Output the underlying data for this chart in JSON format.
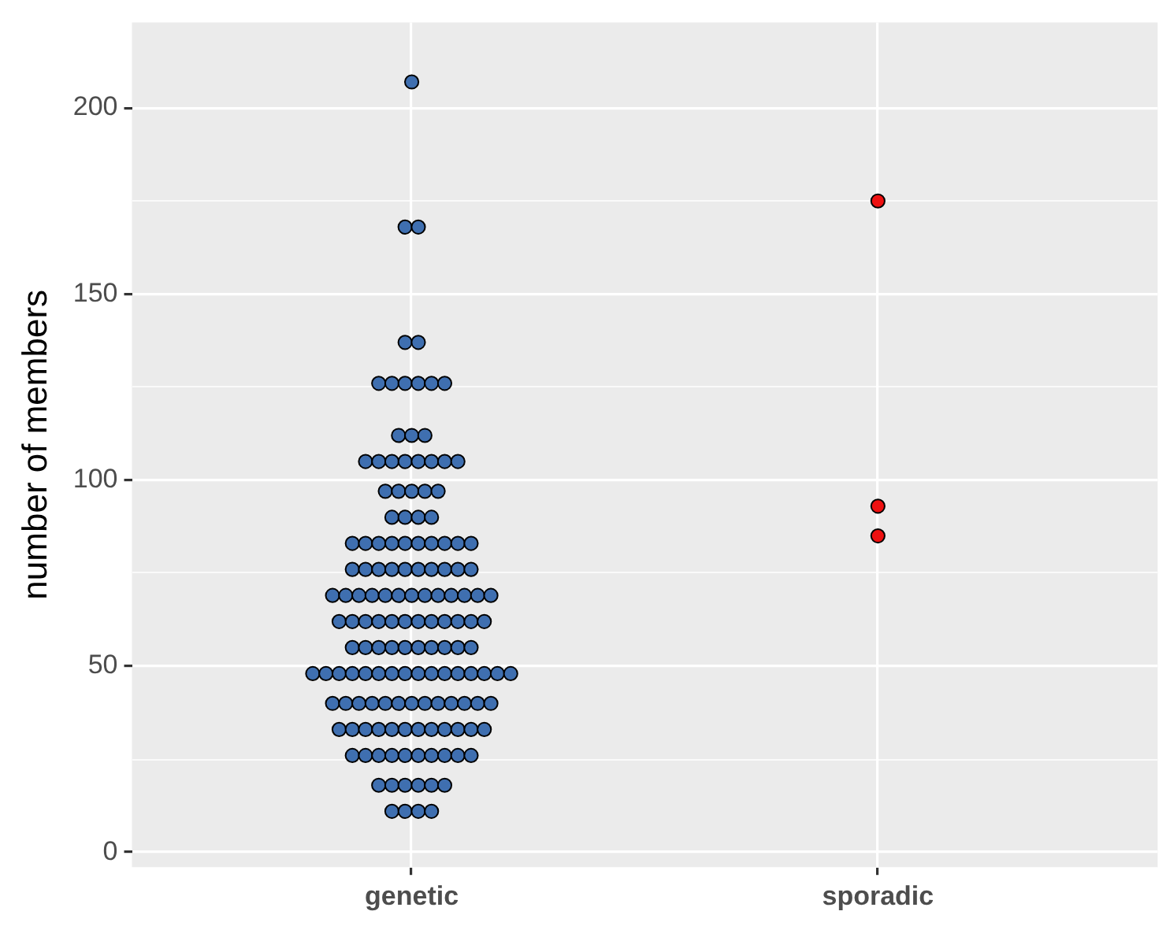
{
  "chart_data": {
    "type": "scatter",
    "ylabel": "number of members",
    "categories": [
      "genetic",
      "sporadic"
    ],
    "ylim": [
      -4,
      223
    ],
    "yticks": [
      0,
      {
        "value": 25,
        "label": null
      },
      50,
      {
        "value": 75,
        "label": null
      },
      100,
      {
        "value": 125,
        "label": null
      },
      150,
      {
        "value": 175,
        "label": null
      },
      200
    ],
    "grid": true,
    "legend": false,
    "marker": "circle",
    "series": [
      {
        "color": "#3f6fb0",
        "x": [
          "genetic",
          "genetic",
          "genetic",
          "genetic",
          "genetic",
          "genetic",
          "genetic",
          "genetic",
          "genetic",
          "genetic",
          "genetic",
          "genetic",
          "genetic",
          "genetic",
          "genetic",
          "genetic",
          "genetic",
          "genetic",
          "genetic",
          "genetic",
          "genetic",
          "genetic",
          "genetic",
          "genetic",
          "genetic",
          "genetic",
          "genetic",
          "genetic",
          "genetic",
          "genetic",
          "genetic",
          "genetic",
          "genetic",
          "genetic",
          "genetic",
          "genetic",
          "genetic",
          "genetic",
          "genetic",
          "genetic",
          "genetic",
          "genetic",
          "genetic",
          "genetic",
          "genetic",
          "genetic",
          "genetic",
          "genetic",
          "genetic",
          "genetic",
          "genetic",
          "genetic",
          "genetic",
          "genetic",
          "genetic",
          "genetic",
          "genetic",
          "genetic",
          "genetic",
          "genetic",
          "genetic",
          "genetic",
          "genetic",
          "genetic",
          "genetic",
          "genetic",
          "genetic",
          "genetic",
          "genetic",
          "genetic",
          "genetic",
          "genetic",
          "genetic",
          "genetic",
          "genetic",
          "genetic",
          "genetic",
          "genetic",
          "genetic",
          "genetic",
          "genetic",
          "genetic",
          "genetic",
          "genetic",
          "genetic",
          "genetic",
          "genetic",
          "genetic",
          "genetic",
          "genetic",
          "genetic",
          "genetic",
          "genetic",
          "genetic",
          "genetic",
          "genetic",
          "genetic",
          "genetic",
          "genetic",
          "genetic",
          "genetic",
          "genetic",
          "genetic",
          "genetic",
          "genetic",
          "genetic",
          "genetic",
          "genetic",
          "genetic",
          "genetic",
          "genetic",
          "genetic",
          "genetic",
          "genetic",
          "genetic",
          "genetic",
          "genetic",
          "genetic",
          "genetic",
          "genetic",
          "genetic",
          "genetic",
          "genetic",
          "genetic",
          "genetic",
          "genetic",
          "genetic",
          "genetic",
          "genetic",
          "genetic",
          "genetic",
          "genetic",
          "genetic",
          "genetic",
          "genetic",
          "genetic",
          "genetic",
          "genetic",
          "genetic",
          "genetic",
          "genetic",
          "genetic",
          "genetic",
          "genetic",
          "genetic",
          "genetic",
          "genetic"
        ],
        "values": [
          207,
          168,
          168,
          137,
          137,
          126,
          126,
          126,
          126,
          126,
          126,
          112,
          112,
          112,
          105,
          105,
          105,
          105,
          105,
          105,
          105,
          105,
          97,
          97,
          97,
          97,
          97,
          90,
          90,
          90,
          90,
          83,
          83,
          83,
          83,
          83,
          83,
          83,
          83,
          83,
          83,
          76,
          76,
          76,
          76,
          76,
          76,
          76,
          76,
          76,
          76,
          69,
          69,
          69,
          69,
          69,
          69,
          69,
          69,
          69,
          69,
          69,
          69,
          69,
          62,
          62,
          62,
          62,
          62,
          62,
          62,
          62,
          62,
          62,
          62,
          62,
          55,
          55,
          55,
          55,
          55,
          55,
          55,
          55,
          55,
          55,
          48,
          48,
          48,
          48,
          48,
          48,
          48,
          48,
          48,
          48,
          48,
          48,
          48,
          48,
          48,
          48,
          40,
          40,
          40,
          40,
          40,
          40,
          40,
          40,
          40,
          40,
          40,
          40,
          40,
          33,
          33,
          33,
          33,
          33,
          33,
          33,
          33,
          33,
          33,
          33,
          33,
          26,
          26,
          26,
          26,
          26,
          26,
          26,
          26,
          26,
          26,
          18,
          18,
          18,
          18,
          18,
          18,
          11,
          11,
          11,
          11
        ]
      },
      {
        "color": "#ee1111",
        "x": [
          "sporadic",
          "sporadic",
          "sporadic"
        ],
        "values": [
          175,
          93,
          85
        ]
      }
    ]
  }
}
